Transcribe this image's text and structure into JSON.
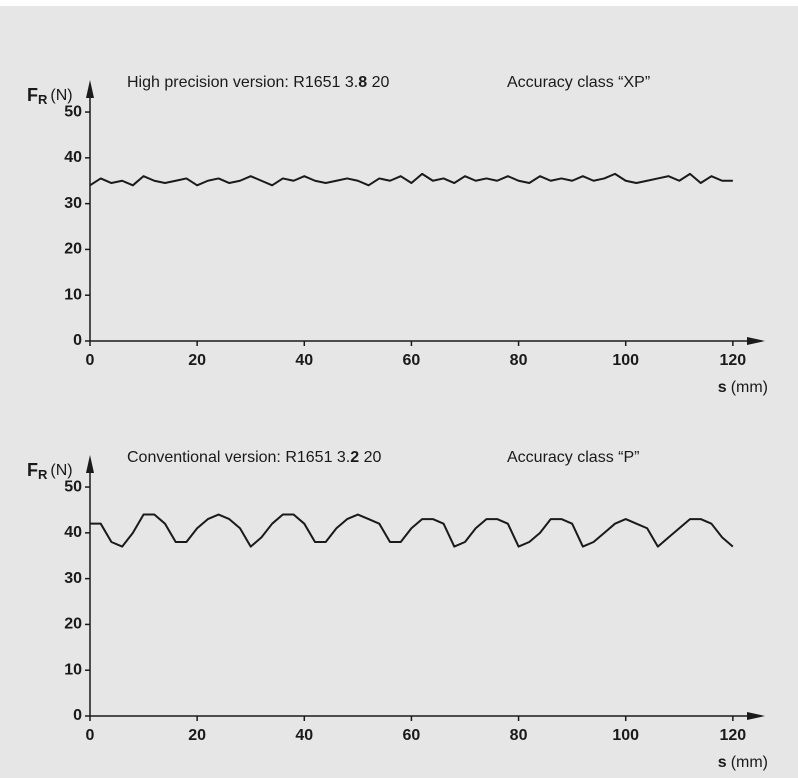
{
  "chart_data": [
    {
      "type": "line",
      "title_parts": [
        "High precision version: R1651 3.",
        "8",
        " 20"
      ],
      "annotation": "Accuracy class “XP”",
      "ylabel_symbol": "F",
      "ylabel_subscript": "R",
      "ylabel_unit": "(N)",
      "xlabel_symbol": "s",
      "xlabel_unit": "(mm)",
      "x": [
        0,
        2,
        4,
        6,
        8,
        10,
        12,
        14,
        16,
        18,
        20,
        22,
        24,
        26,
        28,
        30,
        32,
        34,
        36,
        38,
        40,
        42,
        44,
        46,
        48,
        50,
        52,
        54,
        56,
        58,
        60,
        62,
        64,
        66,
        68,
        70,
        72,
        74,
        76,
        78,
        80,
        82,
        84,
        86,
        88,
        90,
        92,
        94,
        96,
        98,
        100,
        102,
        104,
        106,
        108,
        110,
        112,
        114,
        116,
        118,
        120
      ],
      "series": [
        {
          "color": "#1a1a1a",
          "values": [
            34,
            35.5,
            34.5,
            35,
            34,
            36,
            35,
            34.5,
            35,
            35.5,
            34,
            35,
            35.5,
            34.5,
            35,
            36,
            35,
            34,
            35.5,
            35,
            36,
            35,
            34.5,
            35,
            35.5,
            35,
            34,
            35.5,
            35,
            36,
            34.5,
            36.5,
            35,
            35.5,
            34.5,
            36,
            35,
            35.5,
            35,
            36,
            35,
            34.5,
            36,
            35,
            35.5,
            35,
            36,
            35,
            35.5,
            36.5,
            35,
            34.5,
            35,
            35.5,
            36,
            35,
            36.5,
            34.5,
            36,
            35,
            35
          ]
        }
      ],
      "xlim": [
        0,
        126
      ],
      "ylim": [
        0,
        57
      ],
      "xticks": [
        0,
        20,
        40,
        60,
        80,
        100,
        120
      ],
      "yticks": [
        0,
        10,
        20,
        30,
        40,
        50
      ]
    },
    {
      "type": "line",
      "title_parts": [
        "Conventional version: R1651 3.",
        "2",
        " 20"
      ],
      "annotation": "Accuracy class “P”",
      "ylabel_symbol": "F",
      "ylabel_subscript": "R",
      "ylabel_unit": "(N)",
      "xlabel_symbol": "s",
      "xlabel_unit": "(mm)",
      "x": [
        0,
        2,
        4,
        6,
        8,
        10,
        12,
        14,
        16,
        18,
        20,
        22,
        24,
        26,
        28,
        30,
        32,
        34,
        36,
        38,
        40,
        42,
        44,
        46,
        48,
        50,
        52,
        54,
        56,
        58,
        60,
        62,
        64,
        66,
        68,
        70,
        72,
        74,
        76,
        78,
        80,
        82,
        84,
        86,
        88,
        90,
        92,
        94,
        96,
        98,
        100,
        102,
        104,
        106,
        108,
        110,
        112,
        114,
        116,
        118,
        120
      ],
      "series": [
        {
          "color": "#1a1a1a",
          "values": [
            42,
            42,
            38,
            37,
            40,
            44,
            44,
            42,
            38,
            38,
            41,
            43,
            44,
            43,
            41,
            37,
            39,
            42,
            44,
            44,
            42,
            38,
            38,
            41,
            43,
            44,
            43,
            42,
            38,
            38,
            41,
            43,
            43,
            42,
            37,
            38,
            41,
            43,
            43,
            42,
            37,
            38,
            40,
            43,
            43,
            42,
            37,
            38,
            40,
            42,
            43,
            42,
            41,
            37,
            39,
            41,
            43,
            43,
            42,
            39,
            37
          ]
        }
      ],
      "xlim": [
        0,
        126
      ],
      "ylim": [
        0,
        57
      ],
      "xticks": [
        0,
        20,
        40,
        60,
        80,
        100,
        120
      ],
      "yticks": [
        0,
        10,
        20,
        30,
        40,
        50
      ]
    }
  ]
}
